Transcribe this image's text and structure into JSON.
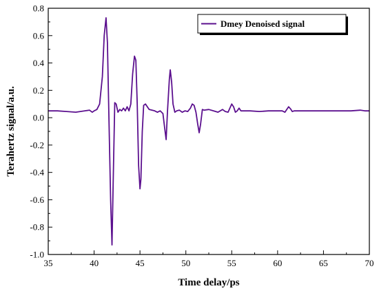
{
  "chart_data": {
    "type": "line",
    "xlabel": "Time delay/ps",
    "ylabel": "Terahertz signal/a.u.",
    "xlim": [
      35,
      70
    ],
    "ylim": [
      -1.0,
      0.8
    ],
    "xticks": [
      35,
      40,
      45,
      50,
      55,
      60,
      65,
      70
    ],
    "yticks": [
      -1.0,
      -0.8,
      -0.6,
      -0.4,
      -0.2,
      0.0,
      0.2,
      0.4,
      0.6,
      0.8
    ],
    "xtick_labels": [
      "35",
      "40",
      "45",
      "50",
      "55",
      "60",
      "65",
      "70"
    ],
    "ytick_labels": [
      "-1.0",
      "-0.8",
      "-0.6",
      "-0.4",
      "-0.2",
      "0.0",
      "0.2",
      "0.4",
      "0.6",
      "0.8"
    ],
    "grid": false,
    "legend_position": "top-right",
    "series": [
      {
        "name": "Dmey  Denoised signal",
        "color": "#5b0f8e",
        "x": [
          35.0,
          36.0,
          37.0,
          38.0,
          38.5,
          39.0,
          39.5,
          39.8,
          40.0,
          40.3,
          40.6,
          40.9,
          41.1,
          41.3,
          41.45,
          41.6,
          41.8,
          41.95,
          42.1,
          42.25,
          42.4,
          42.6,
          42.8,
          43.0,
          43.2,
          43.4,
          43.6,
          43.8,
          44.0,
          44.2,
          44.4,
          44.55,
          44.7,
          44.85,
          45.0,
          45.1,
          45.25,
          45.4,
          45.6,
          45.8,
          46.0,
          46.3,
          46.6,
          46.9,
          47.2,
          47.5,
          47.7,
          47.85,
          48.0,
          48.2,
          48.3,
          48.45,
          48.6,
          48.8,
          49.0,
          49.3,
          49.6,
          49.9,
          50.2,
          50.5,
          50.7,
          50.9,
          51.1,
          51.3,
          51.45,
          51.6,
          51.8,
          52.0,
          52.5,
          53.0,
          53.5,
          54.0,
          54.3,
          54.6,
          54.8,
          55.0,
          55.2,
          55.4,
          55.6,
          55.8,
          56.0,
          57.0,
          58.0,
          59.0,
          60.0,
          60.5,
          60.8,
          61.0,
          61.2,
          61.4,
          61.6,
          61.8,
          62.0,
          63.0,
          64.0,
          65.0,
          66.0,
          67.0,
          68.0,
          69.0,
          69.5,
          70.0
        ],
        "y": [
          0.05,
          0.05,
          0.045,
          0.04,
          0.045,
          0.05,
          0.055,
          0.04,
          0.05,
          0.06,
          0.1,
          0.3,
          0.6,
          0.73,
          0.55,
          0.05,
          -0.6,
          -0.93,
          -0.4,
          0.11,
          0.1,
          0.04,
          0.06,
          0.05,
          0.07,
          0.05,
          0.08,
          0.05,
          0.1,
          0.32,
          0.45,
          0.42,
          0.1,
          -0.35,
          -0.52,
          -0.45,
          -0.1,
          0.09,
          0.1,
          0.08,
          0.06,
          0.055,
          0.05,
          0.04,
          0.05,
          0.03,
          -0.08,
          -0.16,
          0.05,
          0.28,
          0.35,
          0.26,
          0.1,
          0.04,
          0.05,
          0.055,
          0.04,
          0.05,
          0.045,
          0.07,
          0.1,
          0.09,
          0.04,
          -0.05,
          -0.11,
          -0.05,
          0.06,
          0.055,
          0.06,
          0.05,
          0.04,
          0.06,
          0.045,
          0.04,
          0.07,
          0.1,
          0.08,
          0.04,
          0.05,
          0.07,
          0.05,
          0.05,
          0.045,
          0.05,
          0.05,
          0.05,
          0.04,
          0.06,
          0.08,
          0.065,
          0.045,
          0.05,
          0.05,
          0.05,
          0.05,
          0.05,
          0.05,
          0.05,
          0.05,
          0.055,
          0.05,
          0.05
        ]
      }
    ]
  }
}
